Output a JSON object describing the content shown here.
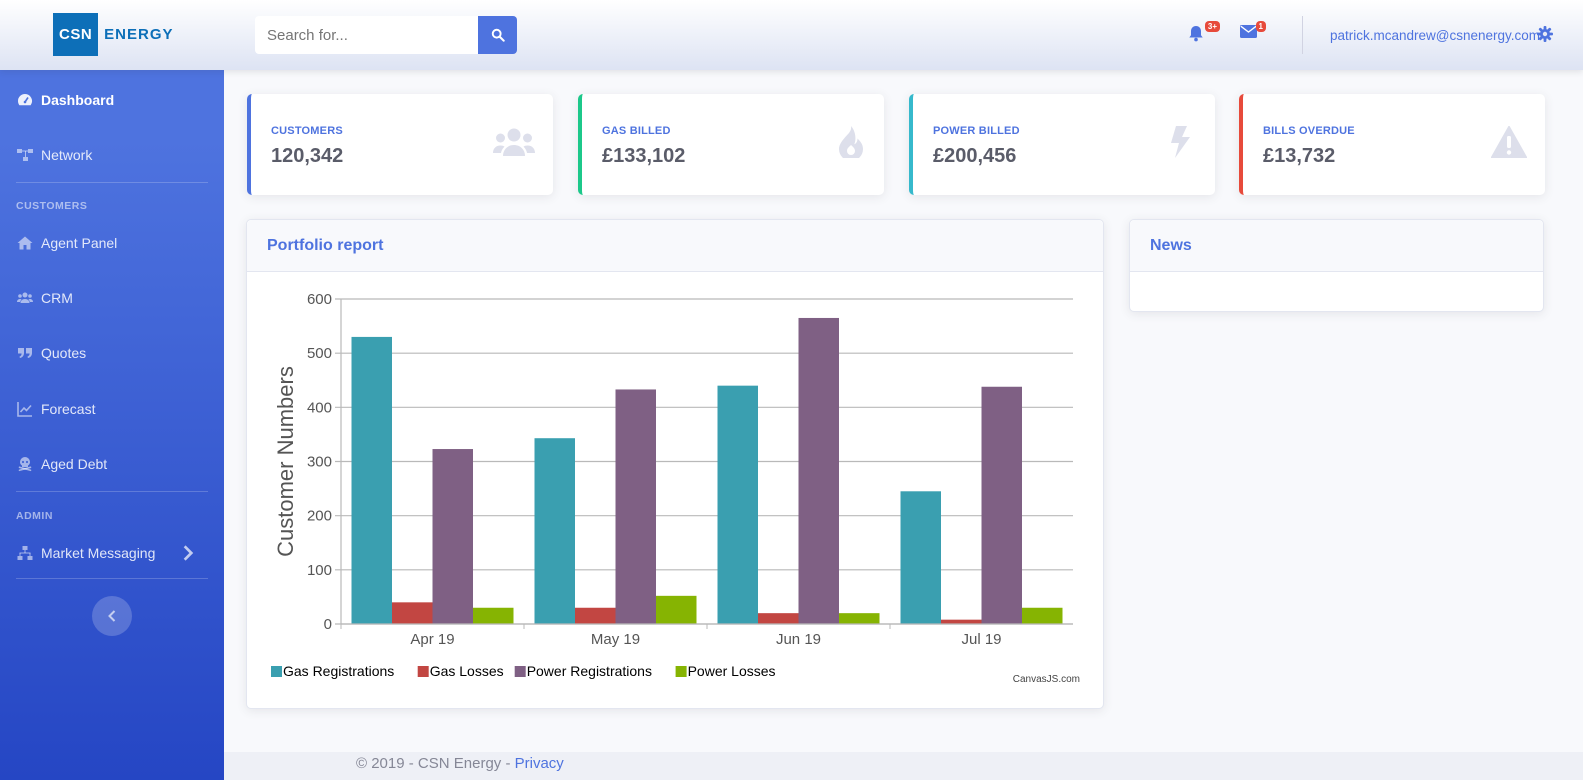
{
  "brand": {
    "box": "CSN",
    "text": "ENERGY"
  },
  "search": {
    "placeholder": "Search for..."
  },
  "topbar": {
    "alerts_badge": "3+",
    "messages_badge": "1",
    "user_email": "patrick.mcandrew@csnenergy.com"
  },
  "sidebar": {
    "dashboard": "Dashboard",
    "network": "Network",
    "customers_heading": "CUSTOMERS",
    "agent_panel": "Agent Panel",
    "crm": "CRM",
    "quotes": "Quotes",
    "forecast": "Forecast",
    "aged_debt": "Aged Debt",
    "admin_heading": "ADMIN",
    "market_messaging": "Market Messaging"
  },
  "cards": [
    {
      "label": "CUSTOMERS",
      "value": "120,342",
      "color": "#4e73df",
      "icon": "users-icon"
    },
    {
      "label": "GAS BILLED",
      "value": "£133,102",
      "color": "#1cc88a",
      "icon": "fire-icon"
    },
    {
      "label": "POWER BILLED",
      "value": "£200,456",
      "color": "#36b9cc",
      "icon": "bolt-icon"
    },
    {
      "label": "BILLS OVERDUE",
      "value": "£13,732",
      "color": "#e74a3b",
      "icon": "warning-icon"
    }
  ],
  "portfolio": {
    "title": "Portfolio report"
  },
  "news": {
    "title": "News"
  },
  "footer": {
    "text": "© 2019 - CSN Energy - ",
    "link": "Privacy"
  },
  "chart_data": {
    "type": "bar",
    "categories": [
      "Apr 19",
      "May 19",
      "Jun 19",
      "Jul 19"
    ],
    "series": [
      {
        "name": "Gas Registrations",
        "color": "#3a9fb0",
        "values": [
          530,
          343,
          440,
          245
        ]
      },
      {
        "name": "Gas Losses",
        "color": "#c24642",
        "values": [
          40,
          30,
          20,
          8
        ]
      },
      {
        "name": "Power Registrations",
        "color": "#7f6084",
        "values": [
          323,
          433,
          565,
          438
        ]
      },
      {
        "name": "Power Losses",
        "color": "#86b402",
        "values": [
          30,
          52,
          20,
          30
        ]
      }
    ],
    "ylabel": "Customer Numbers",
    "ylim": [
      0,
      600
    ],
    "yticks": [
      0,
      100,
      200,
      300,
      400,
      500,
      600
    ],
    "grid": true,
    "legend": "bottom-left",
    "credit": "CanvasJS.com"
  }
}
